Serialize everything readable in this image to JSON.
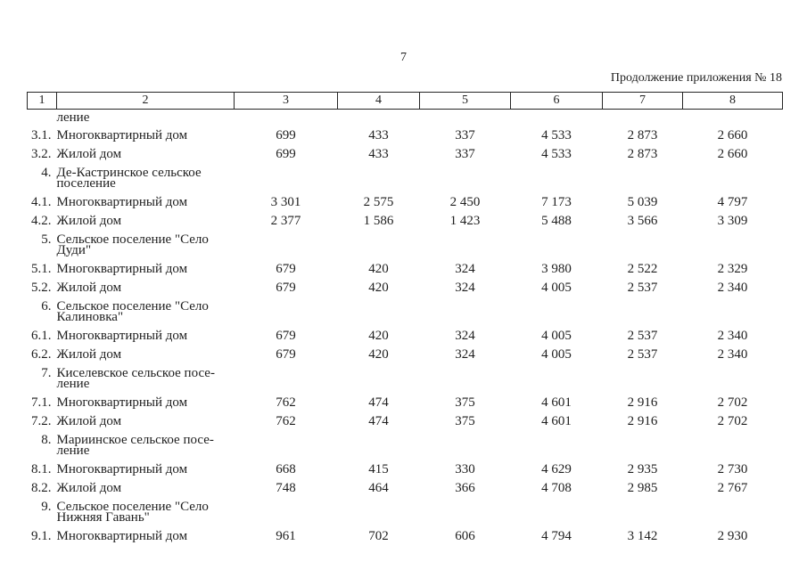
{
  "page": {
    "number": "7",
    "caption": "Продолжение приложения № 18"
  },
  "table": {
    "column_numbers": [
      "1",
      "2",
      "3",
      "4",
      "5",
      "6",
      "7",
      "8"
    ],
    "rows": [
      {
        "num": "",
        "name": "ление",
        "values": [
          "",
          "",
          "",
          "",
          "",
          ""
        ]
      },
      {
        "num": "3.1.",
        "name": "Многоквартирный дом",
        "values": [
          "699",
          "433",
          "337",
          "4 533",
          "2 873",
          "2 660"
        ]
      },
      {
        "num": "3.2.",
        "name": "Жилой дом",
        "values": [
          "699",
          "433",
          "337",
          "4 533",
          "2 873",
          "2 660"
        ]
      },
      {
        "num": "4.",
        "name": "Де-Кастринское сельское\nпоселение",
        "values": [
          "",
          "",
          "",
          "",
          "",
          ""
        ]
      },
      {
        "num": "4.1.",
        "name": "Многоквартирный дом",
        "values": [
          "3 301",
          "2 575",
          "2 450",
          "7 173",
          "5 039",
          "4 797"
        ]
      },
      {
        "num": "4.2.",
        "name": "Жилой дом",
        "values": [
          "2 377",
          "1 586",
          "1 423",
          "5 488",
          "3 566",
          "3 309"
        ]
      },
      {
        "num": "5.",
        "name": "Сельское поселение \"Село\nДуди\"",
        "values": [
          "",
          "",
          "",
          "",
          "",
          ""
        ]
      },
      {
        "num": "5.1.",
        "name": "Многоквартирный дом",
        "values": [
          "679",
          "420",
          "324",
          "3 980",
          "2 522",
          "2 329"
        ]
      },
      {
        "num": "5.2.",
        "name": "Жилой дом",
        "values": [
          "679",
          "420",
          "324",
          "4 005",
          "2 537",
          "2 340"
        ]
      },
      {
        "num": "6.",
        "name": "Сельское поселение \"Село\nКалиновка\"",
        "values": [
          "",
          "",
          "",
          "",
          "",
          ""
        ]
      },
      {
        "num": "6.1.",
        "name": "Многоквартирный дом",
        "values": [
          "679",
          "420",
          "324",
          "4 005",
          "2 537",
          "2 340"
        ]
      },
      {
        "num": "6.2.",
        "name": "Жилой дом",
        "values": [
          "679",
          "420",
          "324",
          "4 005",
          "2 537",
          "2 340"
        ]
      },
      {
        "num": "7.",
        "name": "Киселевское сельское посе-\nление",
        "values": [
          "",
          "",
          "",
          "",
          "",
          ""
        ]
      },
      {
        "num": "7.1.",
        "name": "Многоквартирный дом",
        "values": [
          "762",
          "474",
          "375",
          "4 601",
          "2 916",
          "2 702"
        ]
      },
      {
        "num": "7.2.",
        "name": "Жилой дом",
        "values": [
          "762",
          "474",
          "375",
          "4 601",
          "2 916",
          "2 702"
        ]
      },
      {
        "num": "8.",
        "name": "Мариинское сельское посе-\nление",
        "values": [
          "",
          "",
          "",
          "",
          "",
          ""
        ]
      },
      {
        "num": "8.1.",
        "name": "Многоквартирный дом",
        "values": [
          "668",
          "415",
          "330",
          "4 629",
          "2 935",
          "2 730"
        ]
      },
      {
        "num": "8.2.",
        "name": "Жилой дом",
        "values": [
          "748",
          "464",
          "366",
          "4 708",
          "2 985",
          "2 767"
        ]
      },
      {
        "num": "9.",
        "name": "Сельское поселение \"Село\nНижняя Гавань\"",
        "values": [
          "",
          "",
          "",
          "",
          "",
          ""
        ]
      },
      {
        "num": "9.1.",
        "name": "Многоквартирный дом",
        "values": [
          "961",
          "702",
          "606",
          "4 794",
          "3 142",
          "2 930"
        ]
      }
    ]
  }
}
